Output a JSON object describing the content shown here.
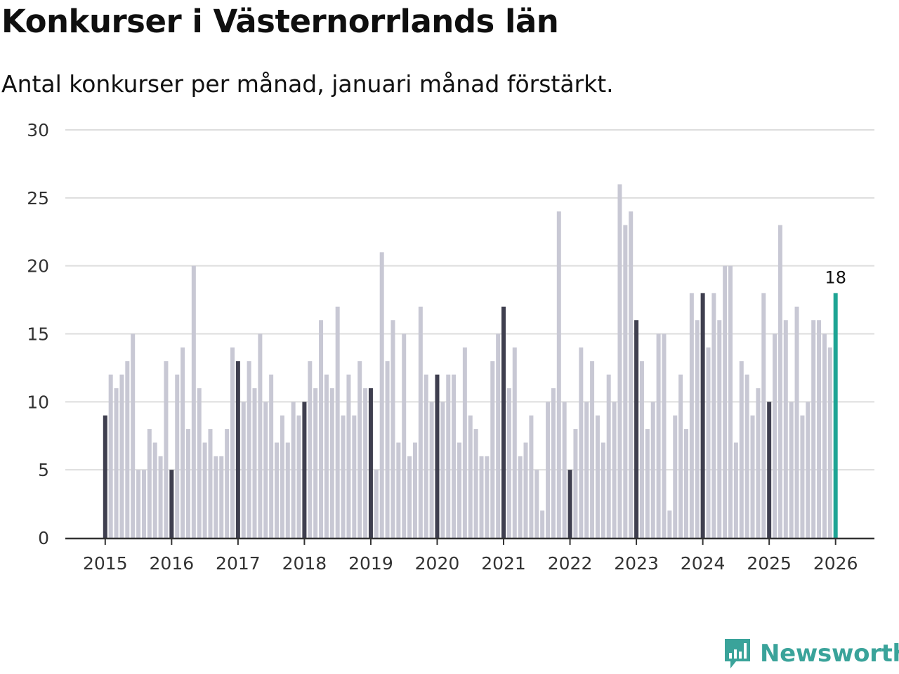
{
  "title": "Konkurser i Västernorrlands län",
  "subtitle": "Antal konkurser per månad, januari månad förstärkt.",
  "colors": {
    "january": "#3f3f4f",
    "month": "#c8c8d4",
    "latest": "#1ea494",
    "grid": "#dddddd",
    "axis": "#333333",
    "brand": "#3aa39a"
  },
  "chart_data": {
    "type": "bar",
    "title": "Konkurser i Västernorrlands län",
    "subtitle": "Antal konkurser per månad, januari månad förstärkt.",
    "xlabel": "",
    "ylabel": "",
    "ylim": [
      0,
      30
    ],
    "yticks": [
      "0",
      "5",
      "10",
      "15",
      "20",
      "25",
      "30"
    ],
    "xticks": [
      "2015",
      "2016",
      "2017",
      "2018",
      "2019",
      "2020",
      "2021",
      "2022",
      "2023",
      "2024",
      "2025",
      "2026"
    ],
    "start": "2015-01",
    "values": [
      9,
      12,
      11,
      12,
      13,
      15,
      5,
      5,
      8,
      7,
      6,
      13,
      5,
      12,
      14,
      8,
      20,
      11,
      7,
      8,
      6,
      6,
      8,
      14,
      13,
      10,
      13,
      11,
      15,
      10,
      12,
      7,
      9,
      7,
      10,
      9,
      10,
      13,
      11,
      16,
      12,
      11,
      17,
      9,
      12,
      9,
      13,
      11,
      11,
      5,
      21,
      13,
      16,
      7,
      15,
      6,
      7,
      17,
      12,
      10,
      12,
      10,
      12,
      12,
      7,
      14,
      9,
      8,
      6,
      6,
      13,
      15,
      17,
      11,
      14,
      6,
      7,
      9,
      5,
      2,
      10,
      11,
      24,
      10,
      5,
      8,
      14,
      10,
      13,
      9,
      7,
      12,
      10,
      26,
      23,
      24,
      16,
      13,
      8,
      10,
      15,
      15,
      2,
      9,
      12,
      8,
      18,
      16,
      18,
      14,
      18,
      16,
      20,
      20,
      7,
      13,
      12,
      9,
      11,
      18,
      10,
      15,
      23,
      16,
      10,
      17,
      9,
      10,
      16,
      16,
      15,
      14,
      18
    ],
    "annotation": "18"
  },
  "brand": {
    "name": "Newsworthy",
    "icon": "newsworthy-logo-icon"
  }
}
